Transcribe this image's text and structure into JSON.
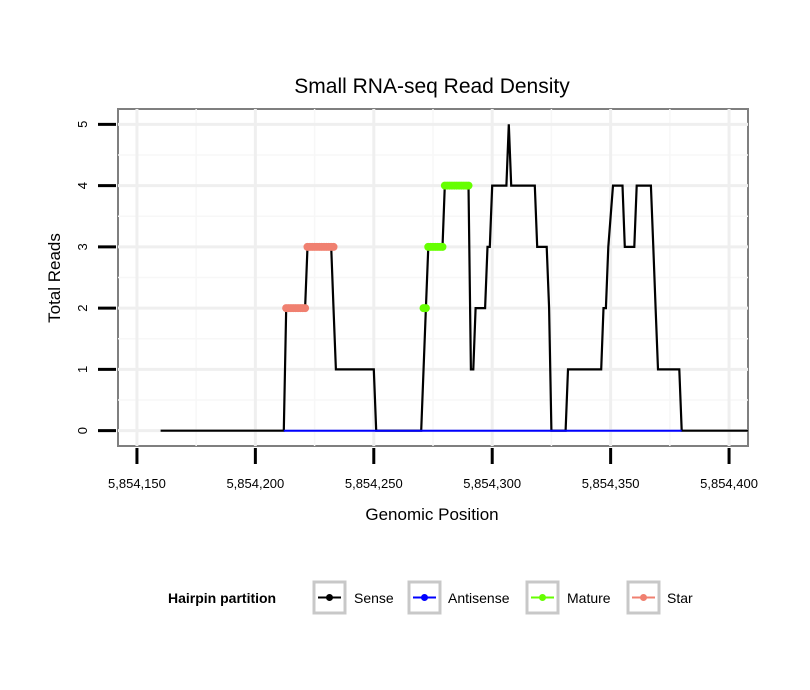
{
  "chart_data": {
    "type": "line",
    "title": "Small RNA-seq Read Density",
    "xlabel": "Genomic Position",
    "ylabel": "Total Reads",
    "xlim": [
      5854142,
      5854408
    ],
    "ylim": [
      -0.25,
      5.25
    ],
    "x_ticks": [
      5854150,
      5854200,
      5854250,
      5854300,
      5854350,
      5854400
    ],
    "x_tick_labels": [
      "5,854,150",
      "5,854,200",
      "5,854,250",
      "5,854,300",
      "5,854,350",
      "5,854,400"
    ],
    "y_ticks": [
      0,
      1,
      2,
      3,
      4,
      5
    ],
    "y_tick_labels": [
      "0",
      "1",
      "2",
      "3",
      "4",
      "5"
    ],
    "grid": true,
    "legend": {
      "title": "Hairpin partition",
      "position": "bottom",
      "entries": [
        "Sense",
        "Antisense",
        "Mature",
        "Star"
      ]
    },
    "colors": {
      "Sense": "#000000",
      "Antisense": "#0000ff",
      "Mature": "#66ff00",
      "Star": "#f08070"
    },
    "series": [
      {
        "name": "Sense",
        "points": [
          [
            5854160,
            0
          ],
          [
            5854212,
            0
          ],
          [
            5854213,
            2
          ],
          [
            5854221,
            2
          ],
          [
            5854222,
            3
          ],
          [
            5854232,
            3
          ],
          [
            5854233,
            2
          ],
          [
            5854234,
            1
          ],
          [
            5854250,
            1
          ],
          [
            5854251,
            0
          ],
          [
            5854270,
            0
          ],
          [
            5854272,
            2
          ],
          [
            5854273,
            3
          ],
          [
            5854279,
            3
          ],
          [
            5854280,
            4
          ],
          [
            5854290,
            4
          ],
          [
            5854291,
            1
          ],
          [
            5854292,
            1
          ],
          [
            5854293,
            2
          ],
          [
            5854297,
            2
          ],
          [
            5854298,
            3
          ],
          [
            5854299,
            3
          ],
          [
            5854300,
            4
          ],
          [
            5854306,
            4
          ],
          [
            5854307,
            5
          ],
          [
            5854308,
            4
          ],
          [
            5854318,
            4
          ],
          [
            5854319,
            3
          ],
          [
            5854323,
            3
          ],
          [
            5854324,
            2
          ],
          [
            5854325,
            0
          ],
          [
            5854331,
            0
          ],
          [
            5854332,
            1
          ],
          [
            5854346,
            1
          ],
          [
            5854347,
            2
          ],
          [
            5854348,
            2
          ],
          [
            5854349,
            3
          ],
          [
            5854351,
            4
          ],
          [
            5854355,
            4
          ],
          [
            5854356,
            3
          ],
          [
            5854360,
            3
          ],
          [
            5854361,
            4
          ],
          [
            5854367,
            4
          ],
          [
            5854368,
            3
          ],
          [
            5854369,
            2
          ],
          [
            5854370,
            1
          ],
          [
            5854379,
            1
          ],
          [
            5854380,
            0
          ],
          [
            5854408,
            0
          ]
        ]
      },
      {
        "name": "Antisense",
        "points": [
          [
            5854212,
            0
          ],
          [
            5854250,
            0
          ],
          [
            5854270,
            0
          ],
          [
            5854325,
            0
          ],
          [
            5854331,
            0
          ],
          [
            5854380,
            0
          ]
        ]
      },
      {
        "name": "Mature",
        "segments": [
          {
            "y": 2,
            "x": [
              5854271,
              5854272
            ]
          },
          {
            "y": 3,
            "x": [
              5854273,
              5854279
            ]
          },
          {
            "y": 4,
            "x": [
              5854280,
              5854290
            ]
          }
        ]
      },
      {
        "name": "Star",
        "segments": [
          {
            "y": 2,
            "x": [
              5854213,
              5854221
            ]
          },
          {
            "y": 3,
            "x": [
              5854222,
              5854233
            ]
          }
        ]
      }
    ]
  }
}
